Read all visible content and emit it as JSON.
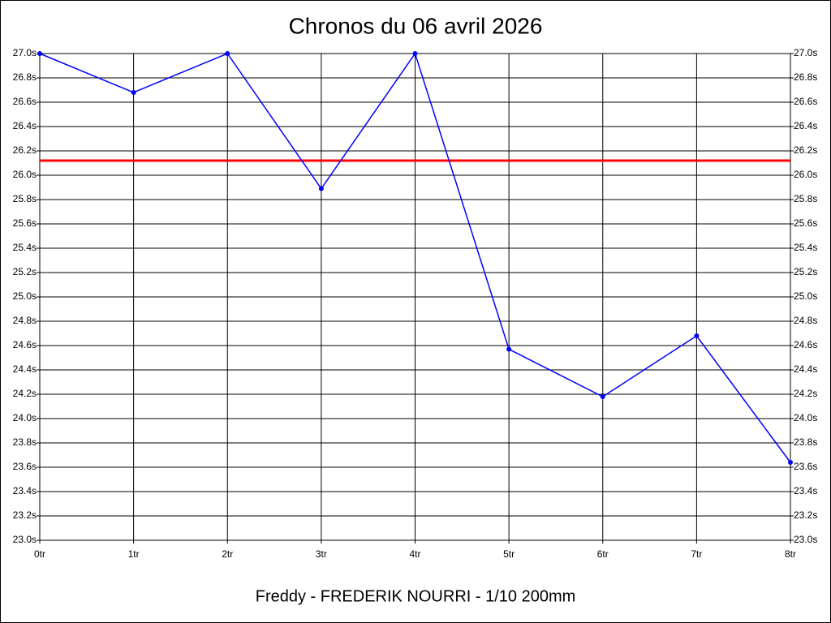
{
  "chart_data": {
    "type": "line",
    "title": "Chronos du 06 avril 2026",
    "subtitle": "Freddy - FREDERIK NOURRI - 1/10 200mm",
    "categories": [
      "0tr",
      "1tr",
      "2tr",
      "3tr",
      "4tr",
      "5tr",
      "6tr",
      "7tr",
      "8tr"
    ],
    "series": [
      {
        "color": "#0000ff",
        "values": [
          27.0,
          26.68,
          27.0,
          25.89,
          27.0,
          24.57,
          24.18,
          24.68,
          23.64
        ]
      }
    ],
    "hline": {
      "value": 26.12,
      "color": "#ff0000"
    },
    "ylim": [
      23.0,
      27.0
    ],
    "yticks": [
      {
        "value": 23.0,
        "label": "23.0s"
      },
      {
        "value": 23.2,
        "label": "23.2s"
      },
      {
        "value": 23.4,
        "label": "23.4s"
      },
      {
        "value": 23.6,
        "label": "23.6s"
      },
      {
        "value": 23.8,
        "label": "23.8s"
      },
      {
        "value": 24.0,
        "label": "24.0s"
      },
      {
        "value": 24.2,
        "label": "24.2s"
      },
      {
        "value": 24.4,
        "label": "24.4s"
      },
      {
        "value": 24.6,
        "label": "24.6s"
      },
      {
        "value": 24.8,
        "label": "24.8s"
      },
      {
        "value": 25.0,
        "label": "25.0s"
      },
      {
        "value": 25.2,
        "label": "25.2s"
      },
      {
        "value": 25.4,
        "label": "25.4s"
      },
      {
        "value": 25.6,
        "label": "25.6s"
      },
      {
        "value": 25.8,
        "label": "25.8s"
      },
      {
        "value": 26.0,
        "label": "26.0s"
      },
      {
        "value": 26.2,
        "label": "26.2s"
      },
      {
        "value": 26.4,
        "label": "26.4s"
      },
      {
        "value": 26.6,
        "label": "26.6s"
      },
      {
        "value": 26.8,
        "label": "26.8s"
      },
      {
        "value": 27.0,
        "label": "27.0s"
      }
    ],
    "grid": true
  }
}
